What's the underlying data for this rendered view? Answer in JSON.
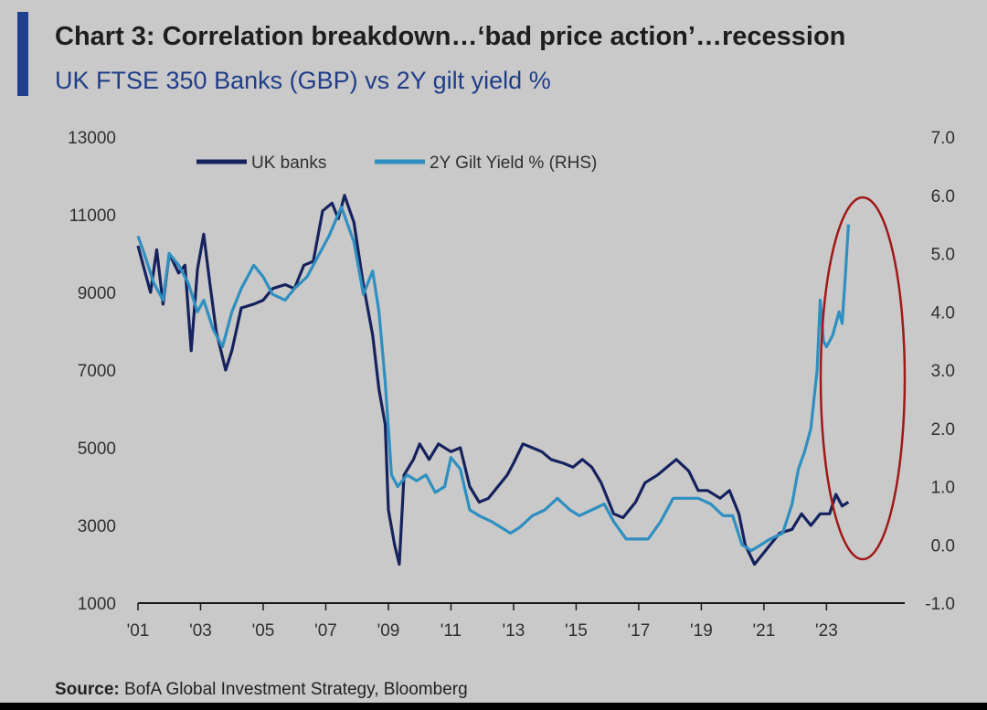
{
  "header": {
    "title": "Chart 3: Correlation breakdown…‘bad price action’…recession",
    "subtitle": "UK FTSE 350 Banks (GBP) vs 2Y gilt yield %"
  },
  "footer": {
    "source_label": "Source:",
    "source_text": "BofA Global Investment Strategy, Bloomberg"
  },
  "colors": {
    "uk_banks": "#16225e",
    "gilt_yield": "#2e8fc0",
    "highlight_ellipse": "#a01818",
    "axis": "#1a1a1a",
    "accent": "#1f3f8f"
  },
  "chart_data": {
    "type": "line",
    "title": "Chart 3: Correlation breakdown…‘bad price action’…recession",
    "subtitle": "UK FTSE 350 Banks (GBP) vs 2Y gilt yield %",
    "x_ticks": [
      "'01",
      "'03",
      "'05",
      "'07",
      "'09",
      "'11",
      "'13",
      "'15",
      "'17",
      "'19",
      "'21",
      "'23"
    ],
    "x_tick_years": [
      2001,
      2003,
      2005,
      2007,
      2009,
      2011,
      2013,
      2015,
      2017,
      2019,
      2021,
      2023
    ],
    "xlim": [
      2001,
      2025.5
    ],
    "left_axis": {
      "ticks": [
        "1000",
        "3000",
        "5000",
        "7000",
        "9000",
        "11000",
        "13000"
      ],
      "ylim": [
        1000,
        13000
      ]
    },
    "right_axis": {
      "ticks": [
        "-1.0",
        "0.0",
        "1.0",
        "2.0",
        "3.0",
        "4.0",
        "5.0",
        "6.0",
        "7.0"
      ],
      "ylim": [
        -1.0,
        7.0
      ]
    },
    "legend_position": "top-left",
    "series": [
      {
        "name": "UK banks",
        "axis": "left",
        "points": [
          [
            2001.0,
            10200
          ],
          [
            2001.2,
            9600
          ],
          [
            2001.4,
            9000
          ],
          [
            2001.6,
            10100
          ],
          [
            2001.8,
            8700
          ],
          [
            2002.0,
            10000
          ],
          [
            2002.3,
            9500
          ],
          [
            2002.5,
            9700
          ],
          [
            2002.7,
            7500
          ],
          [
            2002.9,
            9600
          ],
          [
            2003.1,
            10500
          ],
          [
            2003.3,
            9200
          ],
          [
            2003.5,
            8000
          ],
          [
            2003.8,
            7000
          ],
          [
            2004.0,
            7500
          ],
          [
            2004.3,
            8600
          ],
          [
            2004.7,
            8700
          ],
          [
            2005.0,
            8800
          ],
          [
            2005.3,
            9100
          ],
          [
            2005.7,
            9200
          ],
          [
            2006.0,
            9100
          ],
          [
            2006.3,
            9700
          ],
          [
            2006.6,
            9800
          ],
          [
            2006.9,
            11100
          ],
          [
            2007.2,
            11300
          ],
          [
            2007.4,
            10900
          ],
          [
            2007.6,
            11500
          ],
          [
            2007.9,
            10800
          ],
          [
            2008.2,
            9200
          ],
          [
            2008.5,
            7900
          ],
          [
            2008.7,
            6500
          ],
          [
            2008.9,
            5600
          ],
          [
            2009.0,
            3400
          ],
          [
            2009.2,
            2500
          ],
          [
            2009.35,
            2000
          ],
          [
            2009.5,
            4300
          ],
          [
            2009.8,
            4700
          ],
          [
            2010.0,
            5100
          ],
          [
            2010.3,
            4700
          ],
          [
            2010.6,
            5100
          ],
          [
            2011.0,
            4900
          ],
          [
            2011.3,
            5000
          ],
          [
            2011.6,
            4000
          ],
          [
            2011.9,
            3600
          ],
          [
            2012.2,
            3700
          ],
          [
            2012.5,
            4000
          ],
          [
            2012.8,
            4300
          ],
          [
            2013.0,
            4600
          ],
          [
            2013.3,
            5100
          ],
          [
            2013.6,
            5000
          ],
          [
            2013.9,
            4900
          ],
          [
            2014.2,
            4700
          ],
          [
            2014.6,
            4600
          ],
          [
            2014.9,
            4500
          ],
          [
            2015.2,
            4700
          ],
          [
            2015.5,
            4500
          ],
          [
            2015.8,
            4100
          ],
          [
            2016.2,
            3300
          ],
          [
            2016.5,
            3200
          ],
          [
            2016.9,
            3600
          ],
          [
            2017.2,
            4100
          ],
          [
            2017.6,
            4300
          ],
          [
            2017.9,
            4500
          ],
          [
            2018.2,
            4700
          ],
          [
            2018.6,
            4400
          ],
          [
            2018.9,
            3900
          ],
          [
            2019.2,
            3900
          ],
          [
            2019.6,
            3700
          ],
          [
            2019.9,
            3900
          ],
          [
            2020.2,
            3300
          ],
          [
            2020.4,
            2500
          ],
          [
            2020.7,
            2000
          ],
          [
            2020.9,
            2200
          ],
          [
            2021.2,
            2500
          ],
          [
            2021.5,
            2800
          ],
          [
            2021.9,
            2900
          ],
          [
            2022.2,
            3300
          ],
          [
            2022.5,
            3000
          ],
          [
            2022.8,
            3300
          ],
          [
            2023.1,
            3300
          ],
          [
            2023.3,
            3800
          ],
          [
            2023.5,
            3500
          ],
          [
            2023.7,
            3600
          ]
        ]
      },
      {
        "name": "2Y Gilt Yield % (RHS)",
        "axis": "right",
        "points": [
          [
            2001.0,
            5.3
          ],
          [
            2001.2,
            5.0
          ],
          [
            2001.5,
            4.5
          ],
          [
            2001.8,
            4.2
          ],
          [
            2002.0,
            5.0
          ],
          [
            2002.3,
            4.8
          ],
          [
            2002.6,
            4.5
          ],
          [
            2002.9,
            4.0
          ],
          [
            2003.1,
            4.2
          ],
          [
            2003.4,
            3.7
          ],
          [
            2003.7,
            3.4
          ],
          [
            2004.0,
            4.0
          ],
          [
            2004.3,
            4.4
          ],
          [
            2004.7,
            4.8
          ],
          [
            2005.0,
            4.6
          ],
          [
            2005.3,
            4.3
          ],
          [
            2005.7,
            4.2
          ],
          [
            2006.0,
            4.4
          ],
          [
            2006.4,
            4.6
          ],
          [
            2006.8,
            5.0
          ],
          [
            2007.1,
            5.3
          ],
          [
            2007.5,
            5.8
          ],
          [
            2007.9,
            5.2
          ],
          [
            2008.2,
            4.3
          ],
          [
            2008.5,
            4.7
          ],
          [
            2008.7,
            4.0
          ],
          [
            2008.9,
            2.8
          ],
          [
            2009.1,
            1.2
          ],
          [
            2009.3,
            1.0
          ],
          [
            2009.6,
            1.2
          ],
          [
            2009.9,
            1.1
          ],
          [
            2010.2,
            1.2
          ],
          [
            2010.5,
            0.9
          ],
          [
            2010.8,
            1.0
          ],
          [
            2011.0,
            1.5
          ],
          [
            2011.3,
            1.3
          ],
          [
            2011.6,
            0.6
          ],
          [
            2011.9,
            0.5
          ],
          [
            2012.3,
            0.4
          ],
          [
            2012.6,
            0.3
          ],
          [
            2012.9,
            0.2
          ],
          [
            2013.2,
            0.3
          ],
          [
            2013.6,
            0.5
          ],
          [
            2014.0,
            0.6
          ],
          [
            2014.4,
            0.8
          ],
          [
            2014.8,
            0.6
          ],
          [
            2015.1,
            0.5
          ],
          [
            2015.5,
            0.6
          ],
          [
            2015.9,
            0.7
          ],
          [
            2016.2,
            0.4
          ],
          [
            2016.6,
            0.1
          ],
          [
            2016.9,
            0.1
          ],
          [
            2017.3,
            0.1
          ],
          [
            2017.7,
            0.4
          ],
          [
            2018.1,
            0.8
          ],
          [
            2018.5,
            0.8
          ],
          [
            2018.9,
            0.8
          ],
          [
            2019.3,
            0.7
          ],
          [
            2019.7,
            0.5
          ],
          [
            2020.0,
            0.5
          ],
          [
            2020.3,
            0.0
          ],
          [
            2020.6,
            -0.1
          ],
          [
            2020.9,
            0.0
          ],
          [
            2021.2,
            0.1
          ],
          [
            2021.6,
            0.2
          ],
          [
            2021.9,
            0.7
          ],
          [
            2022.1,
            1.3
          ],
          [
            2022.3,
            1.6
          ],
          [
            2022.5,
            2.0
          ],
          [
            2022.7,
            3.0
          ],
          [
            2022.8,
            4.2
          ],
          [
            2022.9,
            3.5
          ],
          [
            2023.0,
            3.4
          ],
          [
            2023.2,
            3.6
          ],
          [
            2023.4,
            4.0
          ],
          [
            2023.5,
            3.8
          ],
          [
            2023.6,
            4.6
          ],
          [
            2023.7,
            5.5
          ]
        ]
      }
    ]
  }
}
